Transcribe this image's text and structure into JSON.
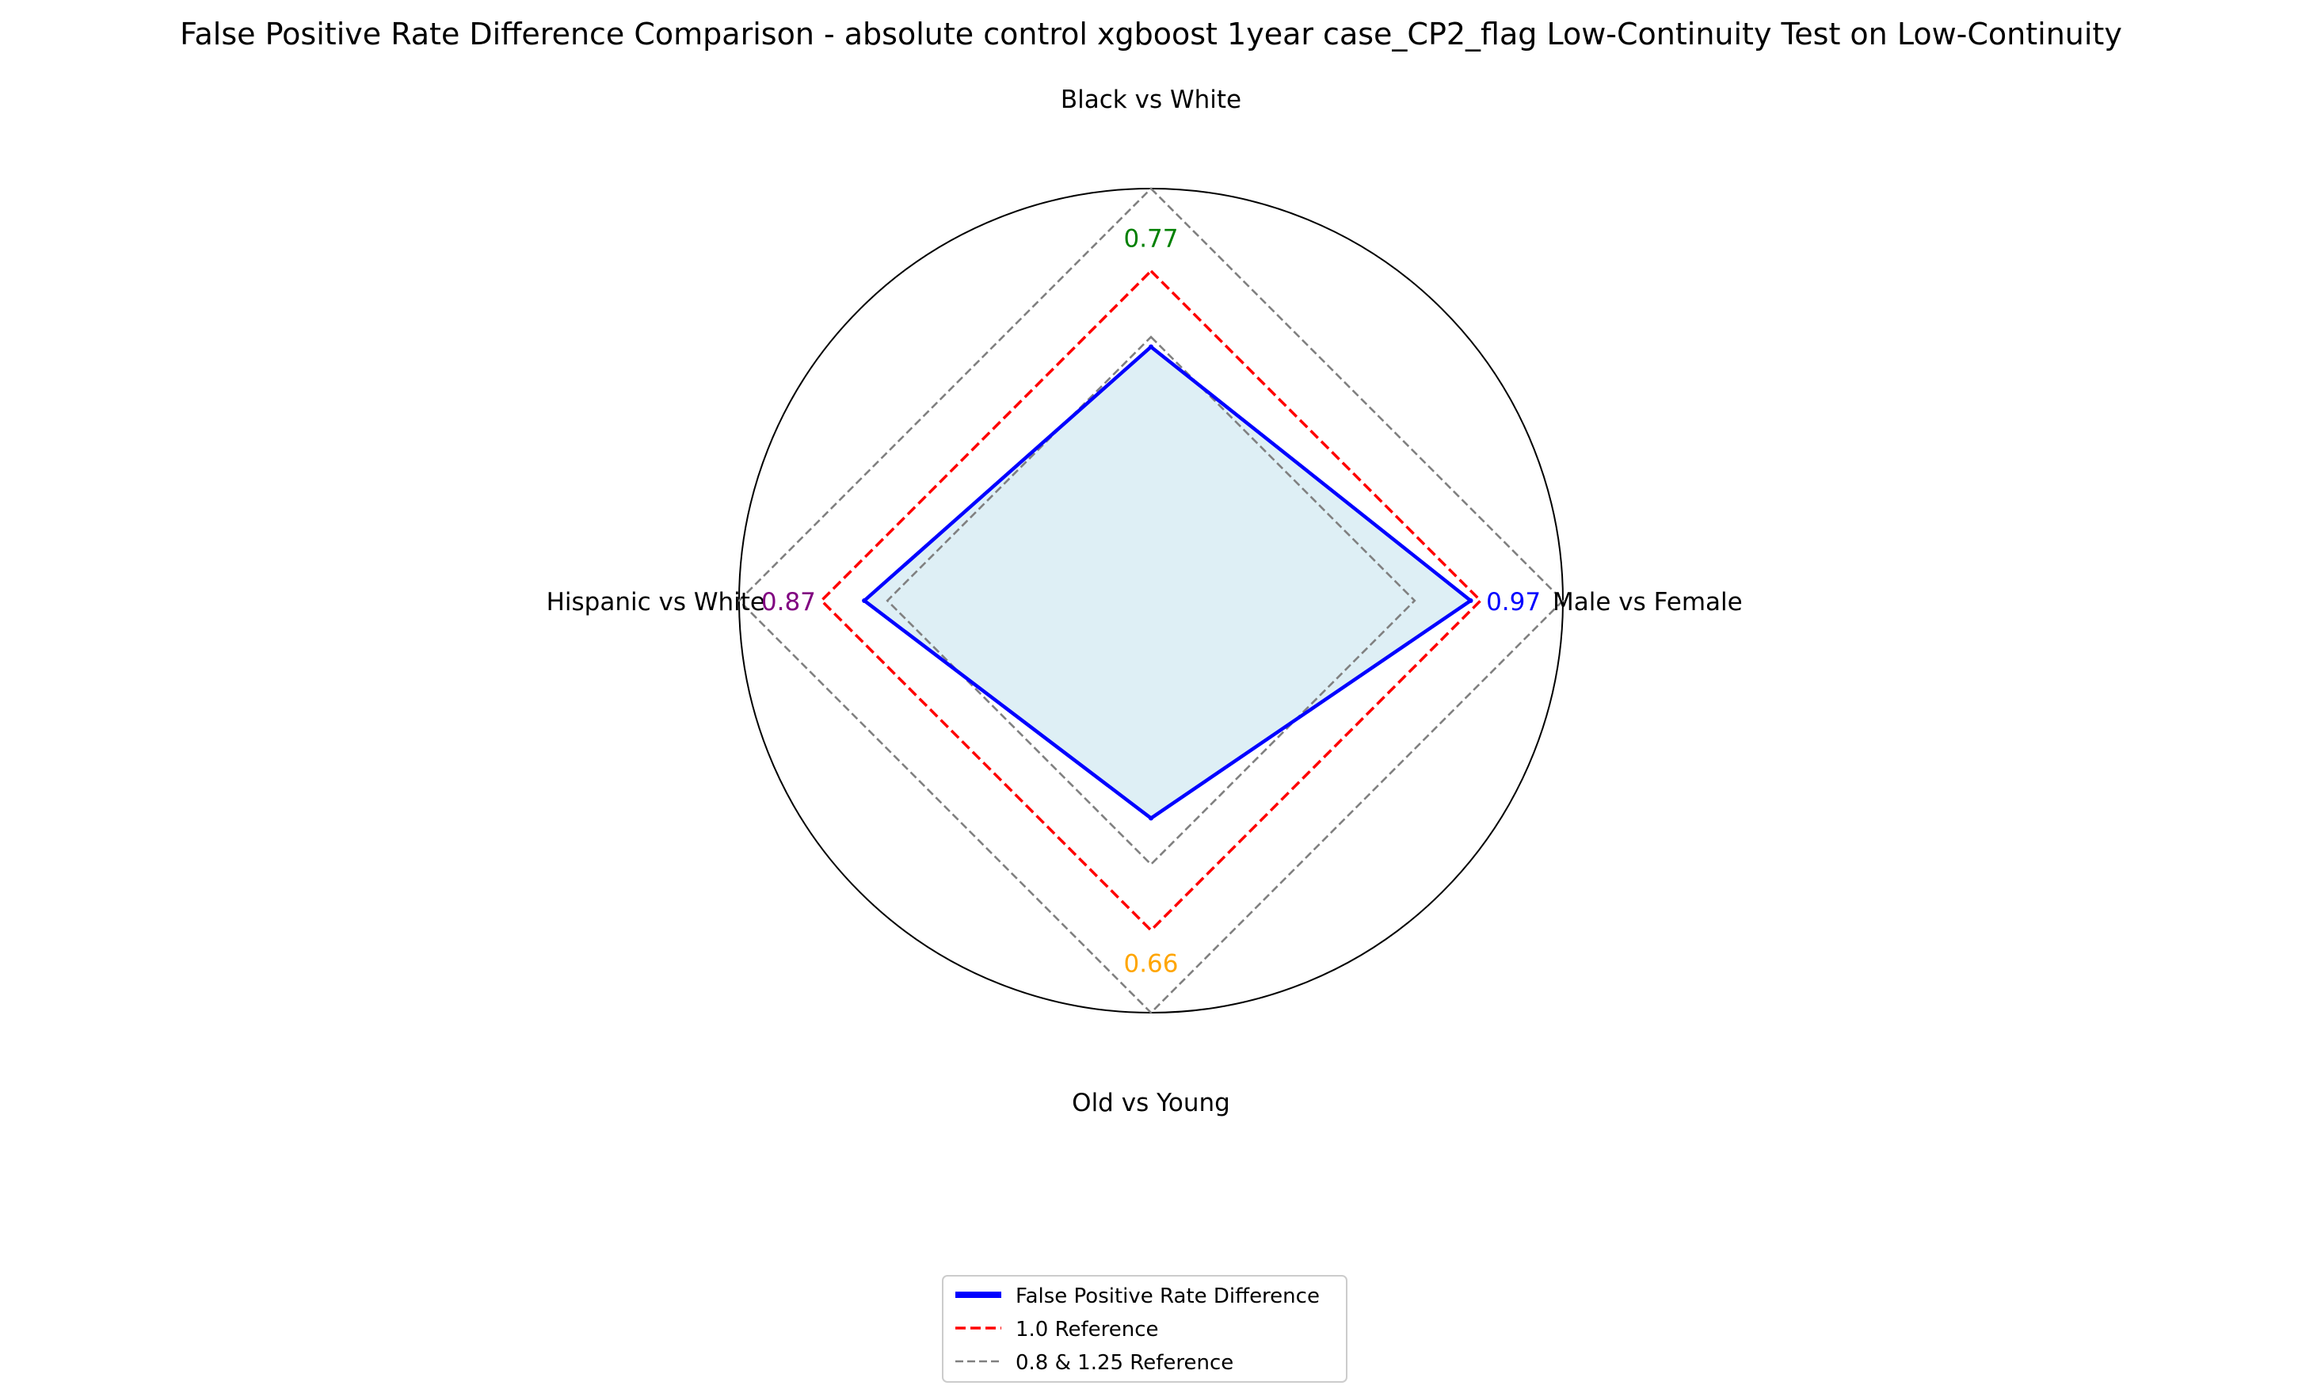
{
  "chart_data": {
    "type": "radar",
    "title": "False Positive Rate Difference Comparison - absolute control xgboost 1year case_CP2_flag Low-Continuity Test on Low-Continuity",
    "axes": [
      "Black vs White",
      "Male vs Female",
      "Old vs Young",
      "Hispanic vs White"
    ],
    "radial_max": 1.25,
    "series": [
      {
        "name": "False Positive Rate Difference",
        "values": [
          0.77,
          0.97,
          0.66,
          0.87
        ],
        "color": "#0000ff",
        "fill": "#add8e6"
      }
    ],
    "value_labels": [
      {
        "axis": "Black vs White",
        "text": "0.77",
        "color": "#008000"
      },
      {
        "axis": "Male vs Female",
        "text": "0.97",
        "color": "#0000ff"
      },
      {
        "axis": "Old vs Young",
        "text": "0.66",
        "color": "#ffa500"
      },
      {
        "axis": "Hispanic vs White",
        "text": "0.87",
        "color": "#800080"
      }
    ],
    "references": [
      {
        "name": "1.0 Reference",
        "value": 1.0,
        "color": "#ff0000",
        "style": "dashed"
      },
      {
        "name": "0.8 & 1.25 Reference",
        "values": [
          0.8,
          1.25
        ],
        "color": "#808080",
        "style": "dashed"
      }
    ],
    "legend": {
      "placement": "bottom-center",
      "entries": [
        {
          "label": "False Positive Rate Difference",
          "color": "#0000ff",
          "style": "solid"
        },
        {
          "label": "1.0 Reference",
          "color": "#ff0000",
          "style": "dashed"
        },
        {
          "label": "0.8 & 1.25 Reference",
          "color": "#808080",
          "style": "dashed"
        }
      ]
    },
    "grid": false
  }
}
